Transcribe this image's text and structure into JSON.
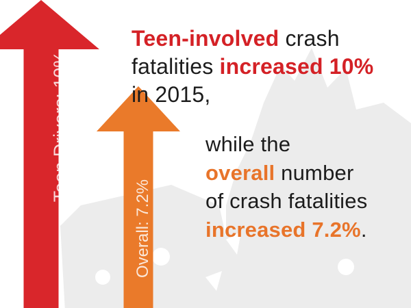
{
  "colors": {
    "teen_arrow": "#d9262b",
    "overall_arrow": "#ea7a2a",
    "highlight_red": "#d42126",
    "highlight_orange": "#e8742a",
    "text_dark": "#1c1c1c",
    "background_graphic": "#ececec"
  },
  "background": {
    "icon": "car-crash-icon"
  },
  "headline_top": {
    "l1a": "Teen-involved",
    "l1b": " crash",
    "l2a": "fatalities ",
    "l2b": "increased 10%",
    "l3": "in 2015,"
  },
  "headline_bottom": {
    "l1": "while the",
    "l2a": "overall",
    "l2b": " number",
    "l3": "of crash fatalities",
    "l4a": "increased 7.2%",
    "l4b": "."
  },
  "chart_data": {
    "type": "bar",
    "orientation": "vertical-arrows",
    "categories": [
      "Teen Drivers",
      "Overall"
    ],
    "values": [
      10,
      7.2
    ],
    "unit": "%",
    "labels": [
      "Teen Drivers: 10%",
      "Overall: 7.2%"
    ],
    "colors": [
      "#d9262b",
      "#ea7a2a"
    ]
  }
}
